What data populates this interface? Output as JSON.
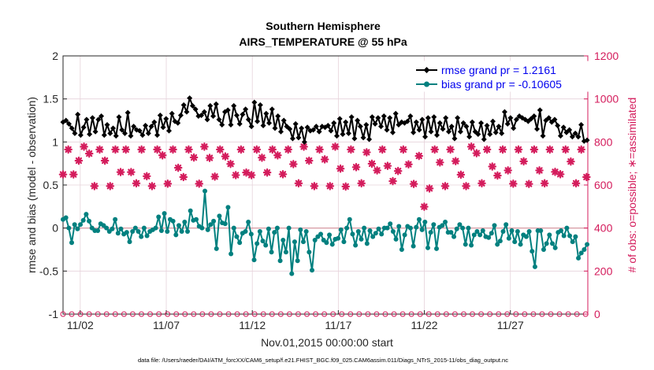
{
  "chart_data": {
    "type": "line",
    "title": "Southern Hemisphere",
    "subtitle": "AIRS_TEMPERATURE @ 55 hPa",
    "xlabel": "Nov.01,2015 00:00:00 start",
    "ylabel": "rmse and bias (model - observation)",
    "y2label": "# of obs: o=possible; ∗=assimilated",
    "ylim": [
      -1,
      2
    ],
    "y2lim": [
      0,
      1200
    ],
    "xlim": [
      1,
      31.5
    ],
    "yticks": [
      "2",
      "1.5",
      "1",
      "0.5",
      "0",
      "-0.5",
      "-1"
    ],
    "y2ticks": [
      "1200",
      "1000",
      "800",
      "600",
      "400",
      "200",
      "0"
    ],
    "xtick_labels": [
      "11/02",
      "11/07",
      "11/12",
      "11/17",
      "11/22",
      "11/27"
    ],
    "xtick_values": [
      2,
      7,
      12,
      17,
      22,
      27
    ],
    "grid": true,
    "legend_position": "top-right",
    "footnote": "data file: /Users/raeder/DAI/ATM_forcXX/CAM6_setup/f.e21.FHIST_BGC.f09_025.CAM6assim.011/Diags_NTrS_2015-11/obs_diag_output.nc",
    "series": [
      {
        "name": "rmse grand pr = 1.2161",
        "color": "#000000",
        "marker": "diamond",
        "values": [
          1.23,
          1.25,
          1.21,
          1.16,
          1.1,
          1.32,
          1.08,
          1.17,
          1.26,
          1.09,
          1.28,
          1.12,
          1.26,
          1.3,
          1.08,
          1.2,
          1.1,
          1.16,
          1.07,
          1.29,
          1.14,
          1.1,
          1.34,
          1.07,
          1.18,
          1.14,
          1.13,
          1.08,
          1.19,
          1.1,
          1.18,
          1.23,
          1.08,
          1.31,
          1.17,
          1.27,
          1.13,
          1.33,
          1.24,
          1.22,
          1.31,
          1.43,
          1.35,
          1.51,
          1.42,
          1.38,
          1.3,
          1.31,
          1.35,
          1.26,
          1.42,
          1.3,
          1.44,
          1.26,
          1.2,
          1.35,
          1.37,
          1.2,
          1.42,
          1.31,
          1.21,
          1.32,
          1.38,
          1.26,
          1.18,
          1.46,
          1.24,
          1.43,
          1.19,
          1.33,
          1.22,
          1.38,
          1.16,
          1.3,
          1.12,
          1.25,
          1.18,
          1.15,
          1.04,
          1.21,
          1.05,
          1.16,
          1.0,
          1.17,
          1.13,
          1.14,
          1.18,
          1.12,
          1.18,
          1.17,
          1.19,
          1.13,
          1.22,
          1.07,
          1.27,
          1.09,
          1.23,
          1.1,
          1.29,
          1.04,
          1.25,
          1.18,
          1.05,
          1.2,
          1.03,
          1.29,
          1.21,
          1.28,
          1.18,
          1.3,
          1.14,
          1.28,
          1.11,
          1.33,
          1.2,
          1.23,
          1.22,
          1.24,
          1.3,
          1.11,
          1.23,
          1.14,
          1.26,
          1.06,
          1.28,
          1.12,
          1.29,
          1.08,
          1.22,
          1.15,
          1.28,
          1.12,
          1.18,
          1.04,
          1.28,
          1.12,
          1.22,
          1.18,
          1.06,
          1.23,
          1.12,
          1.09,
          1.22,
          1.03,
          1.19,
          1.09,
          1.24,
          1.11,
          1.18,
          1.1,
          1.35,
          1.21,
          1.28,
          1.16,
          1.26,
          1.3,
          1.28,
          1.26,
          1.24,
          1.27,
          1.3,
          1.15,
          1.37,
          1.07,
          1.25,
          1.28,
          1.23,
          1.26,
          1.19,
          1.07,
          1.17,
          1.11,
          1.14,
          1.06,
          1.1,
          1.06,
          1.2,
          1.01,
          1.02
        ]
      },
      {
        "name": "bias grand pr = -0.10605",
        "color": "#00807f",
        "marker": "circle",
        "values": [
          0.1,
          0.12,
          0.0,
          -0.17,
          0.04,
          -0.01,
          0.04,
          0.09,
          0.16,
          0.08,
          0.0,
          -0.03,
          -0.03,
          0.05,
          0.03,
          0.0,
          -0.04,
          -0.01,
          0.1,
          -0.06,
          -0.01,
          -0.07,
          -0.05,
          -0.16,
          -0.04,
          0.0,
          -0.04,
          -0.1,
          0.0,
          -0.09,
          -0.04,
          -0.02,
          0.0,
          0.13,
          -0.03,
          0.17,
          -0.04,
          0.1,
          0.08,
          -0.08,
          0.03,
          -0.04,
          0.07,
          -0.04,
          0.2,
          0.09,
          0.1,
          0.02,
          0.0,
          0.43,
          -0.02,
          0.04,
          0.08,
          -0.24,
          0.14,
          0.06,
          0.05,
          0.24,
          -0.3,
          0.0,
          -0.1,
          -0.17,
          -0.06,
          -0.04,
          0.07,
          -0.07,
          -0.37,
          -0.18,
          -0.04,
          -0.15,
          -0.2,
          -0.01,
          -0.28,
          -0.05,
          0.0,
          -0.38,
          -0.14,
          -0.28,
          0.0,
          -0.53,
          -0.16,
          -0.38,
          -0.02,
          -0.16,
          -0.04,
          -0.28,
          -0.49,
          -0.14,
          -0.1,
          -0.07,
          -0.14,
          -0.17,
          -0.08,
          -0.19,
          -0.13,
          -0.12,
          -0.02,
          -0.16,
          0.0,
          0.1,
          -0.07,
          -0.2,
          -0.04,
          -0.13,
          0.0,
          -0.18,
          -0.03,
          -0.1,
          -0.06,
          -0.01,
          -0.07,
          0.0,
          0.0,
          0.05,
          -0.04,
          -0.13,
          0.02,
          -0.25,
          -0.08,
          0.02,
          0.0,
          -0.21,
          0.01,
          0.1,
          -0.02,
          0.07,
          -0.23,
          -0.05,
          0.04,
          -0.24,
          0.01,
          0.03,
          0.07,
          -0.05,
          -0.05,
          -0.1,
          -0.01,
          0.04,
          0.0,
          -0.19,
          0.0,
          -0.2,
          -0.08,
          -0.04,
          -0.08,
          -0.03,
          -0.1,
          -0.11,
          -0.06,
          0.03,
          -0.19,
          -0.15,
          -0.04,
          0.04,
          -0.12,
          -0.03,
          -0.16,
          -0.04,
          -0.19,
          -0.08,
          -0.1,
          -0.04,
          -0.27,
          -0.45,
          -0.03,
          -0.03,
          -0.25,
          -0.18,
          -0.08,
          -0.18,
          -0.23,
          -0.05,
          -0.03,
          -0.09,
          0.0,
          -0.09,
          -0.16,
          -0.1,
          -0.35,
          -0.29,
          -0.25,
          -0.19
        ]
      },
      {
        "name": "# of obs possible",
        "color": "#d41c5c",
        "marker": "circle-open",
        "axis": "right",
        "values": [
          0,
          0,
          0,
          0,
          0,
          0,
          0,
          0,
          0,
          0,
          0,
          0,
          0,
          0,
          0,
          0,
          0,
          0,
          0,
          0,
          0,
          0,
          0,
          0,
          0,
          0,
          0,
          0,
          0,
          0,
          0,
          0,
          0,
          0,
          0,
          0,
          0,
          0,
          0,
          0,
          0,
          0,
          0,
          0,
          0,
          0,
          0,
          0,
          0,
          0,
          0,
          0,
          0,
          0,
          0,
          0,
          0,
          0,
          0,
          0,
          0
        ]
      },
      {
        "name": "# of obs assimilated",
        "color": "#d41c5c",
        "marker": "asterisk",
        "axis": "right",
        "values": [
          649,
          765,
          649,
          713,
          778,
          746,
          595,
          765,
          713,
          595,
          765,
          660,
          765,
          660,
          608,
          765,
          641,
          595,
          765,
          738,
          606,
          765,
          680,
          637,
          765,
          728,
          606,
          778,
          726,
          639,
          765,
          733,
          698,
          646,
          765,
          658,
          646,
          765,
          727,
          658,
          765,
          738,
          650,
          765,
          697,
          608,
          778,
          713,
          595,
          765,
          719,
          595,
          778,
          676,
          593,
          765,
          683,
          608,
          752,
          699,
          668,
          765,
          689,
          618,
          665,
          765,
          696,
          605,
          735,
          499,
          584,
          765,
          705,
          595,
          765,
          711,
          648,
          595,
          778,
          748,
          608,
          765,
          686,
          644,
          765,
          668,
          606,
          765,
          710,
          605,
          765,
          668,
          608,
          765,
          661,
          650,
          765,
          709,
          608,
          765,
          637
        ]
      }
    ]
  }
}
